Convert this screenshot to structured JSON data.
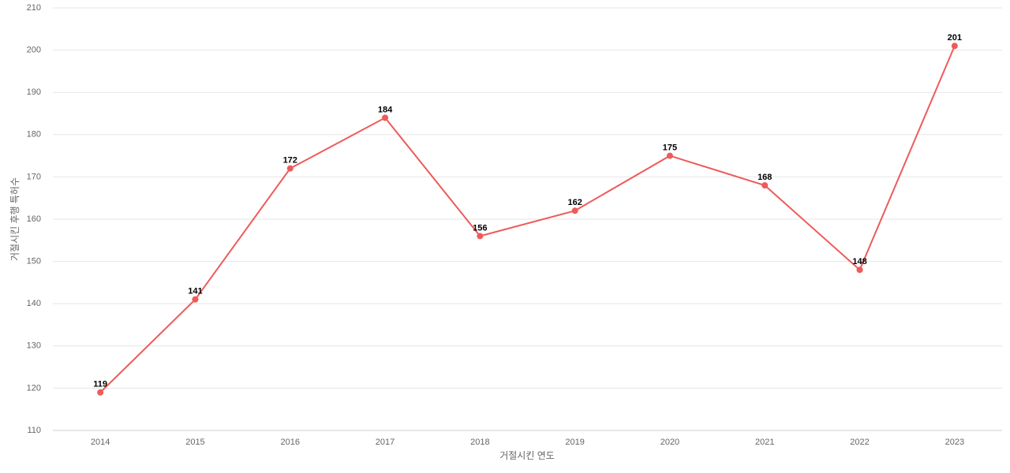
{
  "chart_data": {
    "type": "line",
    "x_label": "거절시킨 연도",
    "y_label": "거절시킨 후행 특허수",
    "categories": [
      "2014",
      "2015",
      "2016",
      "2017",
      "2018",
      "2019",
      "2020",
      "2021",
      "2022",
      "2023"
    ],
    "values": [
      119,
      141,
      172,
      184,
      156,
      162,
      175,
      168,
      148,
      201
    ],
    "color": "#ef5a5a",
    "ylim": [
      110,
      210
    ],
    "yticks": [
      110,
      120,
      130,
      140,
      150,
      160,
      170,
      180,
      190,
      200,
      210
    ],
    "grid": true
  }
}
